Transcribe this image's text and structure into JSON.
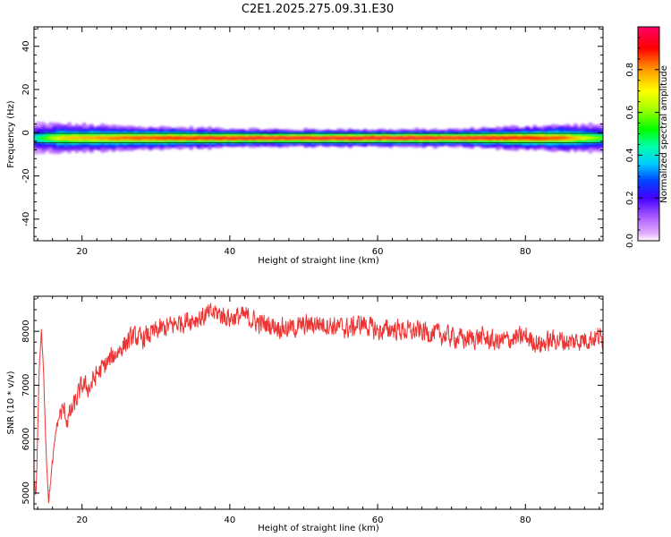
{
  "title": "C2E1.2025.275.09.31.E30",
  "colors": {
    "snr_line": "#ee3333",
    "frame": "#000000"
  },
  "chart_data": [
    {
      "type": "heatmap",
      "name": "spectrogram",
      "xlabel": "Height of straight line (km)",
      "ylabel": "Frequency (Hz)",
      "xlim": [
        13.5,
        90.5
      ],
      "ylim": [
        -50,
        49
      ],
      "xticks": [
        20,
        40,
        60,
        80
      ],
      "yticks": [
        -40,
        -20,
        0,
        20,
        40
      ],
      "xtick_labels": [
        "20",
        "40",
        "60",
        "80"
      ],
      "ytick_labels": [
        "-40",
        "-20",
        "0",
        "20",
        "40"
      ],
      "band": {
        "center_freq_hz": -2.5,
        "peak_halfwidth_hz": 1.5,
        "outer_halfwidth_hz": [
          {
            "x": 13.5,
            "hz": 4.5
          },
          {
            "x": 18,
            "hz": 4
          },
          {
            "x": 25,
            "hz": 3.5
          },
          {
            "x": 35,
            "hz": 3
          },
          {
            "x": 45,
            "hz": 2.5
          },
          {
            "x": 70,
            "hz": 2.5
          },
          {
            "x": 80,
            "hz": 3.5
          },
          {
            "x": 90.5,
            "hz": 4
          }
        ],
        "peak_amplitude": [
          {
            "x": 13.5,
            "a": 0.45
          },
          {
            "x": 17,
            "a": 0.75
          },
          {
            "x": 25,
            "a": 0.85
          },
          {
            "x": 40,
            "a": 0.95
          },
          {
            "x": 60,
            "a": 0.98
          },
          {
            "x": 75,
            "a": 0.95
          },
          {
            "x": 85,
            "a": 0.85
          },
          {
            "x": 90.5,
            "a": 0.55
          }
        ]
      },
      "colorbar": {
        "label": "Normalized spectral amplitude",
        "range": [
          0,
          1
        ],
        "ticks": [
          0.0,
          0.2,
          0.4,
          0.6,
          0.8
        ],
        "tick_labels": [
          "0.0",
          "0.2",
          "0.4",
          "0.6",
          "0.8"
        ]
      }
    },
    {
      "type": "line",
      "name": "snr",
      "xlabel": "Height of straight line (km)",
      "ylabel": "SNR (10 * v/v)",
      "xlim": [
        13.5,
        90.5
      ],
      "ylim": [
        4700,
        8650
      ],
      "xticks": [
        20,
        40,
        60,
        80
      ],
      "yticks": [
        5000,
        6000,
        7000,
        8000
      ],
      "xtick_labels": [
        "20",
        "40",
        "60",
        "80"
      ],
      "ytick_labels": [
        "5000",
        "6000",
        "7000",
        "8000"
      ],
      "series": [
        {
          "name": "SNR",
          "x": [
            13.5,
            13.8,
            14.2,
            14.5,
            14.8,
            15.2,
            15.5,
            15.8,
            16.2,
            16.5,
            17,
            17.5,
            18,
            19,
            20,
            21,
            22,
            23,
            24,
            25,
            26,
            27,
            28,
            30,
            32,
            34,
            36,
            38,
            40,
            42,
            44,
            46,
            48,
            50,
            52,
            54,
            56,
            58,
            60,
            62,
            64,
            66,
            68,
            70,
            72,
            74,
            76,
            78,
            80,
            82,
            84,
            86,
            88,
            90,
            90.5
          ],
          "y": [
            5200,
            5000,
            7300,
            8000,
            7200,
            5600,
            4850,
            5300,
            5800,
            6200,
            6450,
            6550,
            6350,
            6650,
            7000,
            6950,
            7200,
            7350,
            7500,
            7650,
            7800,
            7900,
            7850,
            8000,
            8100,
            8200,
            8250,
            8350,
            8250,
            8280,
            8150,
            8100,
            8050,
            8100,
            8150,
            8100,
            8050,
            8150,
            8000,
            8050,
            8000,
            8000,
            7950,
            7900,
            7850,
            7900,
            7800,
            7850,
            7900,
            7750,
            7850,
            7800,
            7850,
            7900,
            7800
          ]
        }
      ]
    }
  ]
}
